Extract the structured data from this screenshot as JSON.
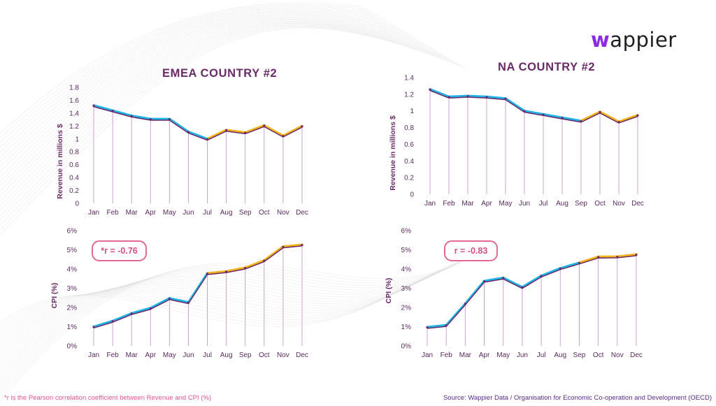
{
  "brand": {
    "logo_w": "w",
    "logo_rest": "appier"
  },
  "footer": {
    "note": "*r is the Pearson correlation coefficient between Revenue and CPI (%)",
    "source": "Source: Wappier Data / Organisation for Economic Co-operation and Development (OECD)"
  },
  "colors": {
    "primary_line": "#1fb3e8",
    "highlight_line": "#f2b31c",
    "shadow_line": "#6a2a68",
    "dropline": "#c79ac9",
    "rbox_border": "#e06a95"
  },
  "panels": [
    {
      "title": "EMEA COUNTRY #2"
    },
    {
      "title": "NA COUNTRY #2"
    }
  ],
  "chart_data": [
    {
      "type": "line",
      "title": "EMEA COUNTRY #2",
      "xlabel": "",
      "ylabel": "Revenue in millions $",
      "categories": [
        "Jan",
        "Feb",
        "Mar",
        "Apr",
        "May",
        "Jun",
        "Jul",
        "Aug",
        "Sep",
        "Oct",
        "Nov",
        "Dec"
      ],
      "values": [
        1.52,
        1.44,
        1.36,
        1.31,
        1.31,
        1.11,
        1.0,
        1.14,
        1.1,
        1.21,
        1.05,
        1.2
      ],
      "ylim": [
        0,
        1.8
      ],
      "yticks": [
        "0",
        "0.2",
        "0.4",
        "0.6",
        "0.8",
        "1",
        "1.2",
        "1.4",
        "1.6",
        "1.8"
      ],
      "grid": false
    },
    {
      "type": "line",
      "title": "",
      "xlabel": "",
      "ylabel": "CPI (%)",
      "annotation": "*r = -0.76",
      "categories": [
        "Jan",
        "Feb",
        "Mar",
        "Apr",
        "May",
        "Jun",
        "Jul",
        "Aug",
        "Sep",
        "Oct",
        "Nov",
        "Dec"
      ],
      "values": [
        1.0,
        1.3,
        1.7,
        1.97,
        2.48,
        2.27,
        3.78,
        3.88,
        4.07,
        4.45,
        5.17,
        5.27
      ],
      "ylim": [
        0,
        6
      ],
      "yticks": [
        "0%",
        "1%",
        "2%",
        "3%",
        "4%",
        "5%",
        "6%"
      ],
      "grid": false
    },
    {
      "type": "line",
      "title": "NA COUNTRY #2",
      "xlabel": "",
      "ylabel": "Revenue in millions $",
      "categories": [
        "Jan",
        "Feb",
        "Mar",
        "Apr",
        "May",
        "Jun",
        "Jul",
        "Aug",
        "Sep",
        "Oct",
        "Nov",
        "Dec"
      ],
      "values": [
        1.26,
        1.17,
        1.18,
        1.17,
        1.15,
        1.0,
        0.96,
        0.92,
        0.88,
        0.99,
        0.87,
        0.95
      ],
      "ylim": [
        0,
        1.4
      ],
      "yticks": [
        "0",
        "0.2",
        "0.4",
        "0.6",
        "0.8",
        "1",
        "1.2",
        "1.4"
      ],
      "grid": false
    },
    {
      "type": "line",
      "title": "",
      "xlabel": "",
      "ylabel": "CPI (%)",
      "annotation": "r = -0.83",
      "categories": [
        "Jan",
        "Feb",
        "Mar",
        "Apr",
        "May",
        "Jun",
        "Jul",
        "Aug",
        "Sep",
        "Oct",
        "Nov",
        "Dec"
      ],
      "values": [
        0.98,
        1.08,
        2.2,
        3.38,
        3.55,
        3.06,
        3.65,
        4.04,
        4.33,
        4.64,
        4.65,
        4.76
      ],
      "ylim": [
        0,
        6
      ],
      "yticks": [
        "0%",
        "1%",
        "2%",
        "3%",
        "4%",
        "5%",
        "6%"
      ],
      "grid": false
    }
  ]
}
